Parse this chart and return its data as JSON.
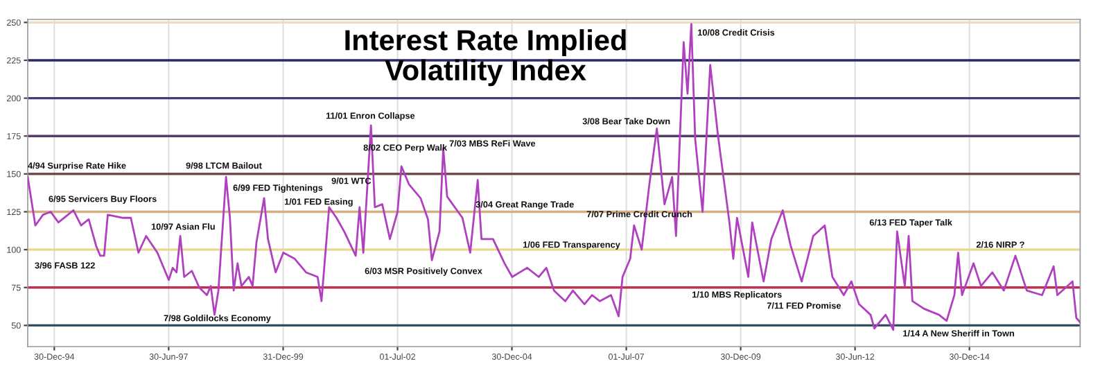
{
  "chart_data": {
    "type": "line",
    "title": "Interest Rate Implied\nVolatility Index",
    "x": [
      "1994-06",
      "1994-08",
      "1994-10",
      "1994-12",
      "1995-02",
      "1995-06",
      "1995-08",
      "1995-10",
      "1995-12",
      "1996-01",
      "1996-02",
      "1996-03",
      "1996-07",
      "1996-09",
      "1996-11",
      "1997-01",
      "1997-04",
      "1997-07",
      "1997-08",
      "1997-09",
      "1997-10",
      "1997-11",
      "1998-01",
      "1998-03",
      "1998-05",
      "1998-06",
      "1998-07",
      "1998-08",
      "1998-10",
      "1998-11",
      "1998-12",
      "1999-01",
      "1999-02",
      "1999-04",
      "1999-05",
      "1999-06",
      "1999-08",
      "1999-09",
      "1999-11",
      "2000-01",
      "2000-04",
      "2000-07",
      "2000-10",
      "2000-11",
      "2001-01",
      "2001-03",
      "2001-05",
      "2001-08",
      "2001-09",
      "2001-10",
      "2001-12",
      "2002-01",
      "2002-03",
      "2002-05",
      "2002-07",
      "2002-08",
      "2002-10",
      "2003-01",
      "2003-03",
      "2003-04",
      "2003-06",
      "2003-07",
      "2003-08",
      "2003-12",
      "2004-02",
      "2004-04",
      "2004-05",
      "2004-08",
      "2004-11",
      "2005-01",
      "2005-05",
      "2005-08",
      "2005-10",
      "2005-12",
      "2006-03",
      "2006-05",
      "2006-08",
      "2006-10",
      "2006-12",
      "2007-03",
      "2007-05",
      "2007-06",
      "2007-08",
      "2007-09",
      "2007-11",
      "2008-01",
      "2008-03",
      "2008-05",
      "2008-07",
      "2008-08",
      "2008-10",
      "2008-11",
      "2008-12",
      "2009-01",
      "2009-03",
      "2009-05",
      "2009-07",
      "2009-09",
      "2009-10",
      "2009-11",
      "2009-12",
      "2010-03",
      "2010-04",
      "2010-07",
      "2010-09",
      "2010-12",
      "2011-02",
      "2011-05",
      "2011-08",
      "2011-11",
      "2012-01",
      "2012-04",
      "2012-06",
      "2012-08",
      "2012-11",
      "2012-12",
      "2013-03",
      "2013-05",
      "2013-06",
      "2013-08",
      "2013-09",
      "2013-10",
      "2014-01",
      "2014-05",
      "2014-07",
      "2014-09",
      "2014-10",
      "2014-11",
      "2015-02",
      "2015-04",
      "2015-07",
      "2015-10",
      "2016-01",
      "2016-04",
      "2016-08",
      "2016-11",
      "2016-12",
      "2017-04",
      "2017-05",
      "2017-06"
    ],
    "series": [
      {
        "color": "#b040c0",
        "values": [
          148,
          116,
          123,
          125,
          118,
          126,
          116,
          120,
          102,
          96,
          96,
          123,
          121,
          121,
          98,
          109,
          98,
          80,
          88,
          85,
          109,
          82,
          86,
          75,
          70,
          76,
          57,
          73,
          148,
          121,
          73,
          91,
          76,
          82,
          76,
          105,
          134,
          107,
          85,
          98,
          94,
          85,
          82,
          66,
          128,
          121,
          112,
          96,
          128,
          98,
          182,
          128,
          130,
          107,
          125,
          155,
          143,
          134,
          120,
          93,
          112,
          167,
          135,
          121,
          98,
          146,
          107,
          107,
          91,
          82,
          88,
          82,
          88,
          73,
          66,
          73,
          64,
          70,
          66,
          70,
          56,
          82,
          94,
          116,
          100,
          143,
          180,
          130,
          148,
          109,
          237,
          203,
          249,
          173,
          125,
          222,
          176,
          137,
          118,
          94,
          121,
          82,
          118,
          79,
          107,
          126,
          103,
          79,
          109,
          116,
          82,
          70,
          79,
          64,
          57,
          48,
          57,
          47,
          112,
          76,
          109,
          66,
          61,
          57,
          53,
          70,
          98,
          70,
          91,
          76,
          85,
          73,
          96,
          73,
          70,
          89,
          70,
          79,
          55,
          52
        ]
      }
    ],
    "xlim": [
      "1994-06",
      "2017-06"
    ],
    "xticks": [
      {
        "value": "1994-12-30",
        "label": "30-Dec-94"
      },
      {
        "value": "1997-06-30",
        "label": "30-Jun-97"
      },
      {
        "value": "1999-12-31",
        "label": "31-Dec-99"
      },
      {
        "value": "2002-07-01",
        "label": "01-Jul-02"
      },
      {
        "value": "2004-12-30",
        "label": "30-Dec-04"
      },
      {
        "value": "2007-07-01",
        "label": "01-Jul-07"
      },
      {
        "value": "2009-12-30",
        "label": "30-Dec-09"
      },
      {
        "value": "2012-06-30",
        "label": "30-Jun-12"
      },
      {
        "value": "2014-12-30",
        "label": "30-Dec-14"
      }
    ],
    "ylim": [
      36,
      252
    ],
    "yticks": [
      50,
      75,
      100,
      125,
      150,
      175,
      200,
      225,
      250
    ],
    "grid": "x",
    "line_style": "solid",
    "marker": "none",
    "legend": false,
    "ref_lines": [
      {
        "axis": "y",
        "value": 250,
        "color": "#eedcc0"
      },
      {
        "axis": "y",
        "value": 225,
        "color": "#2a2a6a"
      },
      {
        "axis": "y",
        "value": 200,
        "color": "#4a3a7a"
      },
      {
        "axis": "y",
        "value": 175,
        "color": "#5a3a6a"
      },
      {
        "axis": "y",
        "value": 150,
        "color": "#6a4040"
      },
      {
        "axis": "y",
        "value": 125,
        "color": "#d4b080"
      },
      {
        "axis": "y",
        "value": 100,
        "color": "#e8d890"
      },
      {
        "axis": "y",
        "value": 75,
        "color": "#c03050"
      },
      {
        "axis": "y",
        "value": 50,
        "color": "#305060"
      }
    ],
    "annotations": [
      "4/94 Surprise Rate Hike",
      "6/95 Servicers Buy Floors",
      "3/96 FASB 122",
      "10/97 Asian Flu",
      "7/98 Goldilocks Economy",
      "9/98 LTCM Bailout",
      "6/99 FED Tightenings",
      "1/01 FED Easing",
      "9/01 WTC",
      "11/01 Enron Collapse",
      "8/02 CEO Perp Walk",
      "7/03 MBS ReFi Wave",
      "3/04 Great Range Trade",
      "6/03 MSR Positively Convex",
      "1/06 FED Transparency",
      "7/07 Prime Credit Crunch",
      "3/08 Bear Take Down",
      "10/08 Credit Crisis",
      "1/10 MBS Replicators",
      "7/11 FED Promise",
      "6/13 FED Taper Talk",
      "2/16 NIRP ?",
      "1/14 A New Sheriff in Town"
    ]
  }
}
